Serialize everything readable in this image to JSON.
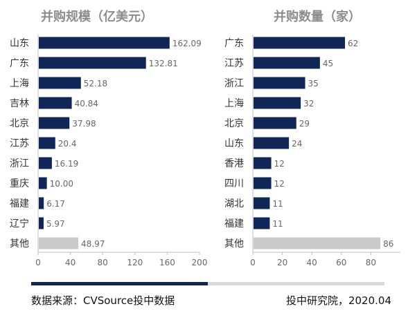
{
  "colors": {
    "bar": "#0f2657",
    "other_bar": "#c9c9c9",
    "footer_dark": "#0f2657",
    "footer_light": "#d9d9d9"
  },
  "footer": {
    "source": "数据来源：CVSource投中数据",
    "credit": "投中研究院，2020.04"
  },
  "chart_data": [
    {
      "type": "bar",
      "orientation": "horizontal",
      "title": "并购规模（亿美元）",
      "categories": [
        "山东",
        "广东",
        "上海",
        "吉林",
        "北京",
        "江苏",
        "浙江",
        "重庆",
        "福建",
        "辽宁",
        "其他"
      ],
      "value_labels": [
        "162.09",
        "132.81",
        "52.18",
        "40.84",
        "37.98",
        "20.4",
        "16.19",
        "10.00",
        "6.17",
        "5.97",
        "48.97"
      ],
      "values": [
        162.09,
        132.81,
        52.18,
        40.84,
        37.98,
        20.4,
        16.19,
        10.0,
        6.17,
        5.97,
        48.97
      ],
      "xlim": [
        0,
        200
      ],
      "xticks": [
        0,
        40,
        80,
        120,
        160,
        200
      ],
      "highlight_last": true
    },
    {
      "type": "bar",
      "orientation": "horizontal",
      "title": "并购数量（家）",
      "categories": [
        "广东",
        "江苏",
        "浙江",
        "上海",
        "北京",
        "山东",
        "香港",
        "四川",
        "湖北",
        "福建",
        "其他"
      ],
      "value_labels": [
        "62",
        "45",
        "35",
        "32",
        "29",
        "24",
        "12",
        "12",
        "11",
        "11",
        "86"
      ],
      "values": [
        62,
        45,
        35,
        32,
        29,
        24,
        12,
        12,
        11,
        11,
        86
      ],
      "xlim": [
        0,
        100
      ],
      "xticks": [
        0,
        20,
        40,
        60,
        80
      ],
      "highlight_last": true
    }
  ]
}
